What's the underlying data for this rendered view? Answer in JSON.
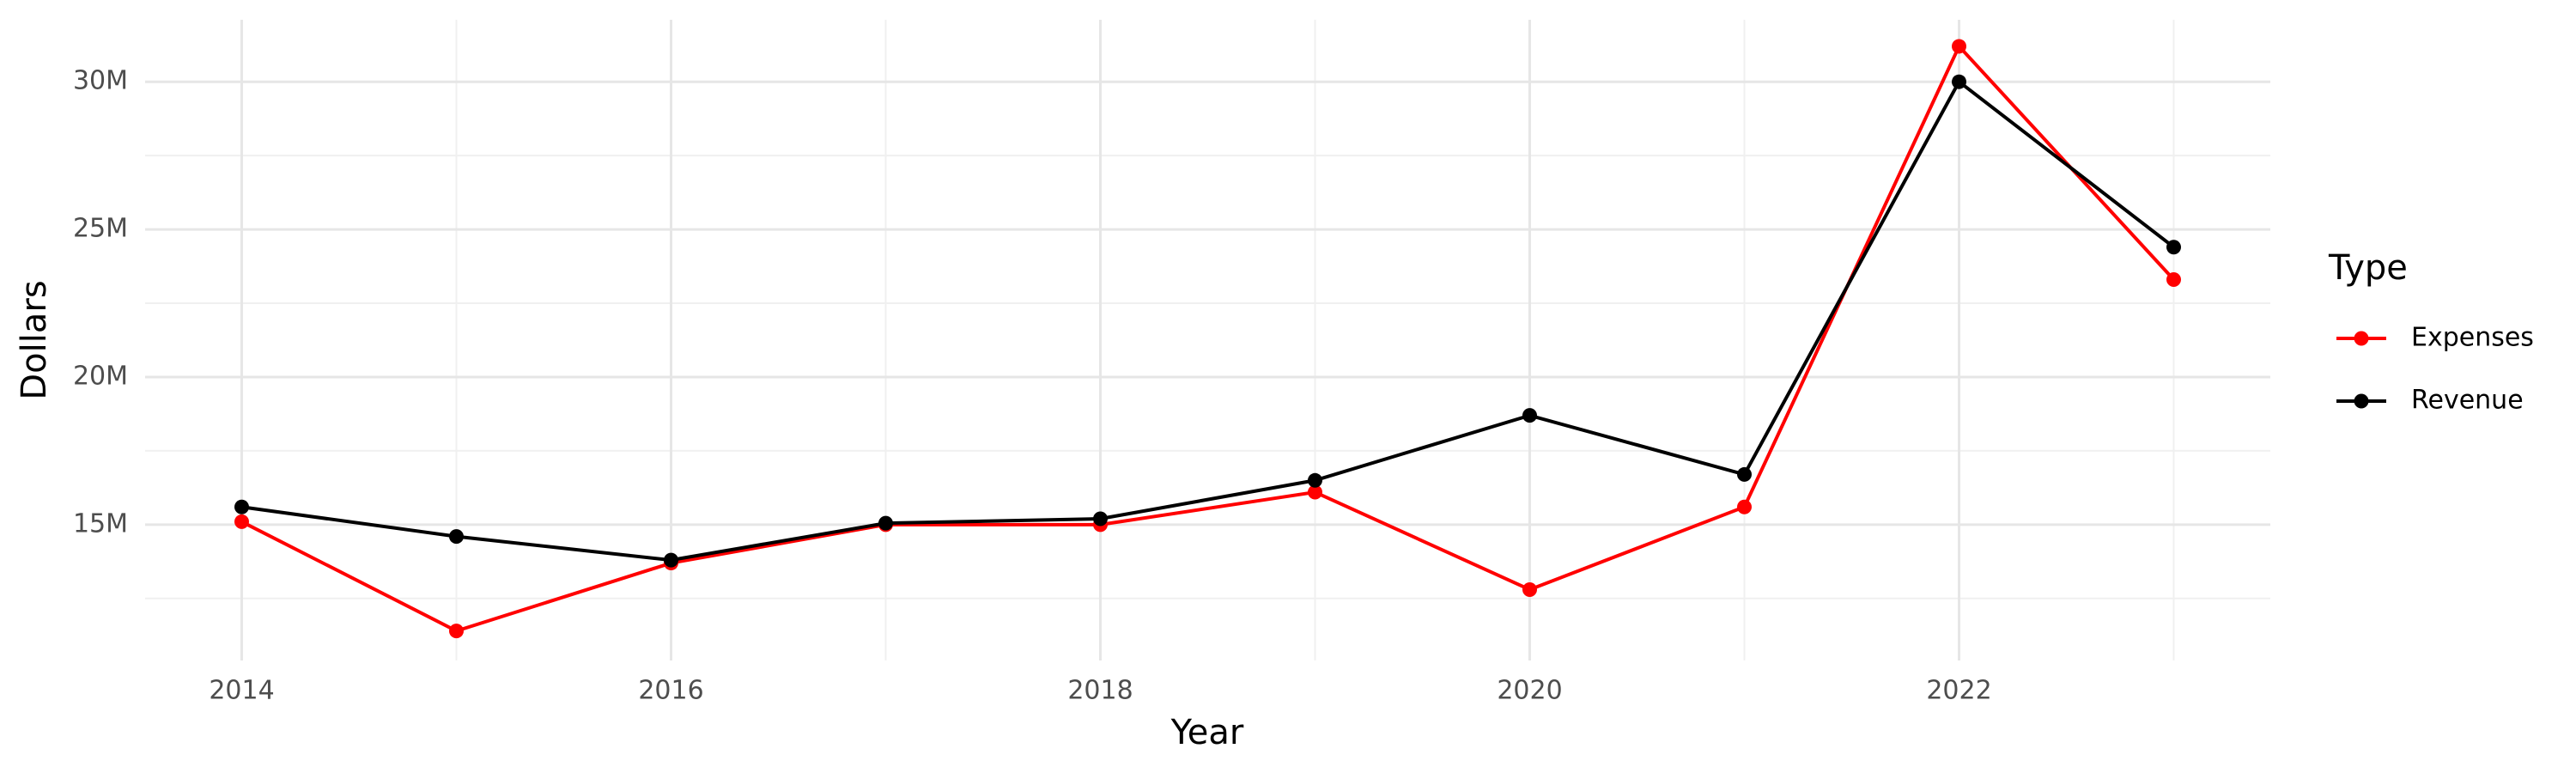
{
  "chart_data": {
    "type": "line",
    "x_label": "Year",
    "y_label": "Dollars",
    "legend_title": "Type",
    "x": [
      2014,
      2015,
      2016,
      2017,
      2018,
      2019,
      2020,
      2021,
      2022,
      2023
    ],
    "series": [
      {
        "name": "Expenses",
        "color": "#ff0000",
        "values": [
          15100000,
          11400000,
          13700000,
          15000000,
          15000000,
          16100000,
          12800000,
          15600000,
          31200000,
          23300000
        ]
      },
      {
        "name": "Revenue",
        "color": "#000000",
        "values": [
          15600000,
          14600000,
          13800000,
          15050000,
          15200000,
          16500000,
          18700000,
          16700000,
          30000000,
          24400000
        ]
      }
    ],
    "xlim": [
      2013.55,
      2023.45
    ],
    "xticks": [
      2014,
      2016,
      2018,
      2020,
      2022
    ],
    "ylim": [
      10400000,
      32100000
    ],
    "yticks": [
      {
        "value": 15000000,
        "label": "15M"
      },
      {
        "value": 20000000,
        "label": "20M"
      },
      {
        "value": 25000000,
        "label": "25M"
      },
      {
        "value": 30000000,
        "label": "30M"
      }
    ],
    "grid": true,
    "legend_position": "right"
  }
}
